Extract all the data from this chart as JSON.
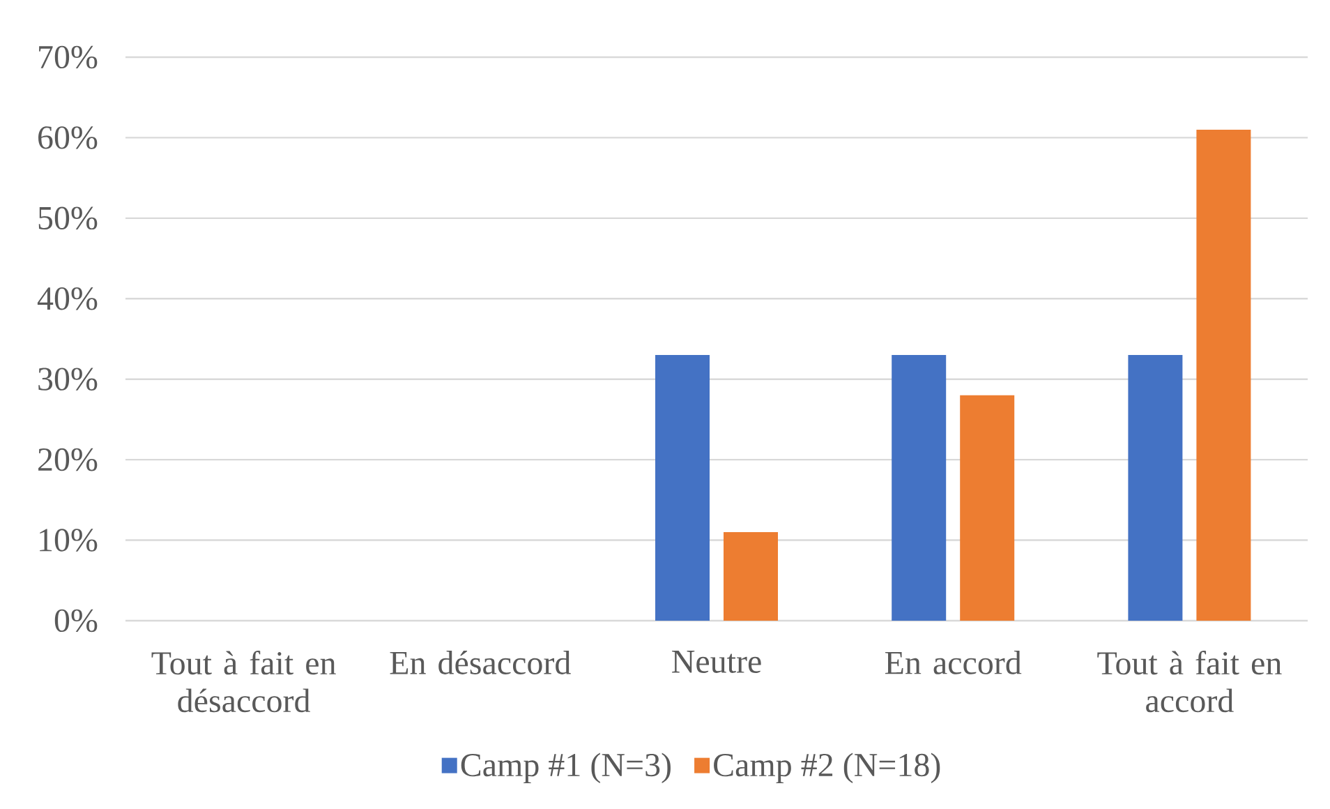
{
  "chart_data": {
    "type": "bar",
    "categories": [
      "Tout à fait en désaccord",
      "En désaccord",
      "Neutre",
      "En accord",
      "Tout à fait en accord"
    ],
    "series": [
      {
        "name": "Camp #1 (N=3)",
        "color": "#4472c4",
        "values": [
          0,
          0,
          33,
          33,
          33
        ]
      },
      {
        "name": "Camp #2 (N=18)",
        "color": "#ed7d31",
        "values": [
          0,
          0,
          11,
          28,
          61
        ]
      }
    ],
    "ylim": [
      0,
      70
    ],
    "yticks": [
      {
        "value": 0,
        "label": "0%"
      },
      {
        "value": 10,
        "label": "10%"
      },
      {
        "value": 20,
        "label": "20%"
      },
      {
        "value": 30,
        "label": "30%"
      },
      {
        "value": 40,
        "label": "40%"
      },
      {
        "value": 50,
        "label": "50%"
      },
      {
        "value": 60,
        "label": "60%"
      },
      {
        "value": 70,
        "label": "70%"
      }
    ],
    "grid": "y",
    "legend": "bottom"
  }
}
